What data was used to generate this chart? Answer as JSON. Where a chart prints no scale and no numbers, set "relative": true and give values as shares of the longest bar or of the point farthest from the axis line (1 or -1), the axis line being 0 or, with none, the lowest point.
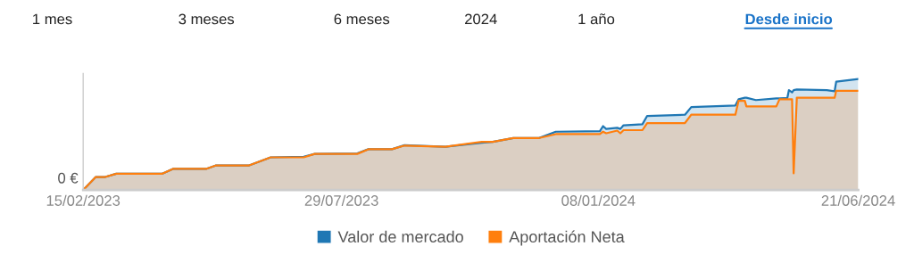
{
  "chart_data": {
    "type": "area",
    "relative": true,
    "annotations": [
      "1 mes",
      "3 meses",
      "6 meses",
      "2024",
      "1 año",
      "Desde inicio",
      "0 €"
    ],
    "x": [
      "2023-02-15",
      "2023-02-23",
      "2023-03-01",
      "2023-03-08",
      "2023-04-06",
      "2023-04-13",
      "2023-05-04",
      "2023-05-10",
      "2023-05-31",
      "2023-06-14",
      "2023-07-05",
      "2023-07-12",
      "2023-08-08",
      "2023-08-15",
      "2023-08-30",
      "2023-09-07",
      "2023-10-03",
      "2023-10-26",
      "2023-11-02",
      "2023-11-15",
      "2023-12-01",
      "2023-12-12",
      "2024-01-09",
      "2024-01-11",
      "2024-01-13",
      "2024-01-20",
      "2024-01-22",
      "2024-01-24",
      "2024-02-05",
      "2024-02-08",
      "2024-03-03",
      "2024-03-07",
      "2024-04-04",
      "2024-04-06",
      "2024-04-10",
      "2024-04-11",
      "2024-04-17",
      "2024-04-30",
      "2024-05-02",
      "2024-05-07",
      "2024-05-08",
      "2024-05-10",
      "2024-05-11",
      "2024-05-13",
      "2024-06-01",
      "2024-06-06",
      "2024-06-07",
      "2024-06-21"
    ],
    "series": [
      {
        "name": "Valor de mercado",
        "color": "#1f77b4",
        "values": [
          0,
          0.117,
          0.117,
          0.146,
          0.146,
          0.19,
          0.19,
          0.22,
          0.22,
          0.294,
          0.3,
          0.325,
          0.33,
          0.367,
          0.367,
          0.403,
          0.39,
          0.425,
          0.433,
          0.467,
          0.467,
          0.525,
          0.53,
          0.575,
          0.55,
          0.56,
          0.55,
          0.583,
          0.592,
          0.667,
          0.678,
          0.747,
          0.761,
          0.817,
          0.831,
          0.831,
          0.81,
          0.825,
          0.825,
          0.83,
          0.9,
          0.88,
          0.9,
          0.906,
          0.9,
          0.89,
          0.975,
          1.0
        ]
      },
      {
        "name": "Aportación Neta",
        "color": "#ff7f0e",
        "values": [
          0,
          0.117,
          0.117,
          0.146,
          0.146,
          0.19,
          0.19,
          0.22,
          0.22,
          0.294,
          0.294,
          0.325,
          0.325,
          0.367,
          0.367,
          0.4,
          0.39,
          0.433,
          0.433,
          0.467,
          0.467,
          0.503,
          0.503,
          0.525,
          0.511,
          0.535,
          0.511,
          0.539,
          0.539,
          0.603,
          0.603,
          0.678,
          0.678,
          0.803,
          0.803,
          0.753,
          0.753,
          0.753,
          0.817,
          0.817,
          0.817,
          0.817,
          0.15,
          0.831,
          0.831,
          0.831,
          0.894,
          0.894
        ]
      }
    ],
    "xlim": [
      "2023-02-15",
      "2024-06-21"
    ],
    "xticks": [
      {
        "value": "2023-02-15",
        "label": "15/02/2023"
      },
      {
        "value": "2023-07-29",
        "label": "29/07/2023"
      },
      {
        "value": "2024-01-08",
        "label": "08/01/2024"
      },
      {
        "value": "2024-06-21",
        "label": "21/06/2024"
      }
    ],
    "grid": false,
    "legend": "bottom",
    "line_style": "solid",
    "marker": "none"
  }
}
